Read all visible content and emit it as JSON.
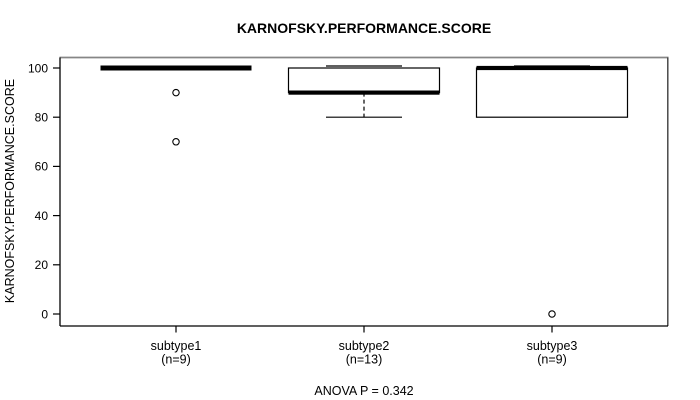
{
  "chart_data": {
    "type": "boxplot",
    "title": "KARNOFSKY.PERFORMANCE.SCORE",
    "ylabel": "KARNOFSKY.PERFORMANCE.SCORE",
    "xlabel": "",
    "annotation": "ANOVA P = 0.342",
    "yticks": [
      0,
      20,
      40,
      60,
      80,
      100
    ],
    "ylim": [
      -5,
      105
    ],
    "grid": false,
    "legend": "none",
    "groups": [
      {
        "label": "subtype1",
        "sublabel": "(n=9)",
        "n": 9,
        "q1": 100,
        "median": 100,
        "q3": 100,
        "whisker_low": 100,
        "whisker_high": 100,
        "outliers": [
          90,
          70
        ]
      },
      {
        "label": "subtype2",
        "sublabel": "(n=13)",
        "n": 13,
        "q1": 90,
        "median": 90,
        "q3": 100,
        "whisker_low": 80,
        "whisker_high": 100,
        "outliers": []
      },
      {
        "label": "subtype3",
        "sublabel": "(n=9)",
        "n": 9,
        "q1": 80,
        "median": 100,
        "q3": 100,
        "whisker_low": 80,
        "whisker_high": 100,
        "outliers": [
          0
        ]
      }
    ],
    "colors": {
      "box_stroke": "#000000",
      "box_fill": "#ffffff",
      "median": "#000000",
      "whisker": "#000000",
      "outlier_stroke": "#000000",
      "frame_top": "#868686",
      "frame_side": "#3c3c3c",
      "axis": "#000000",
      "text": "#000000",
      "background": "#ffffff"
    }
  }
}
